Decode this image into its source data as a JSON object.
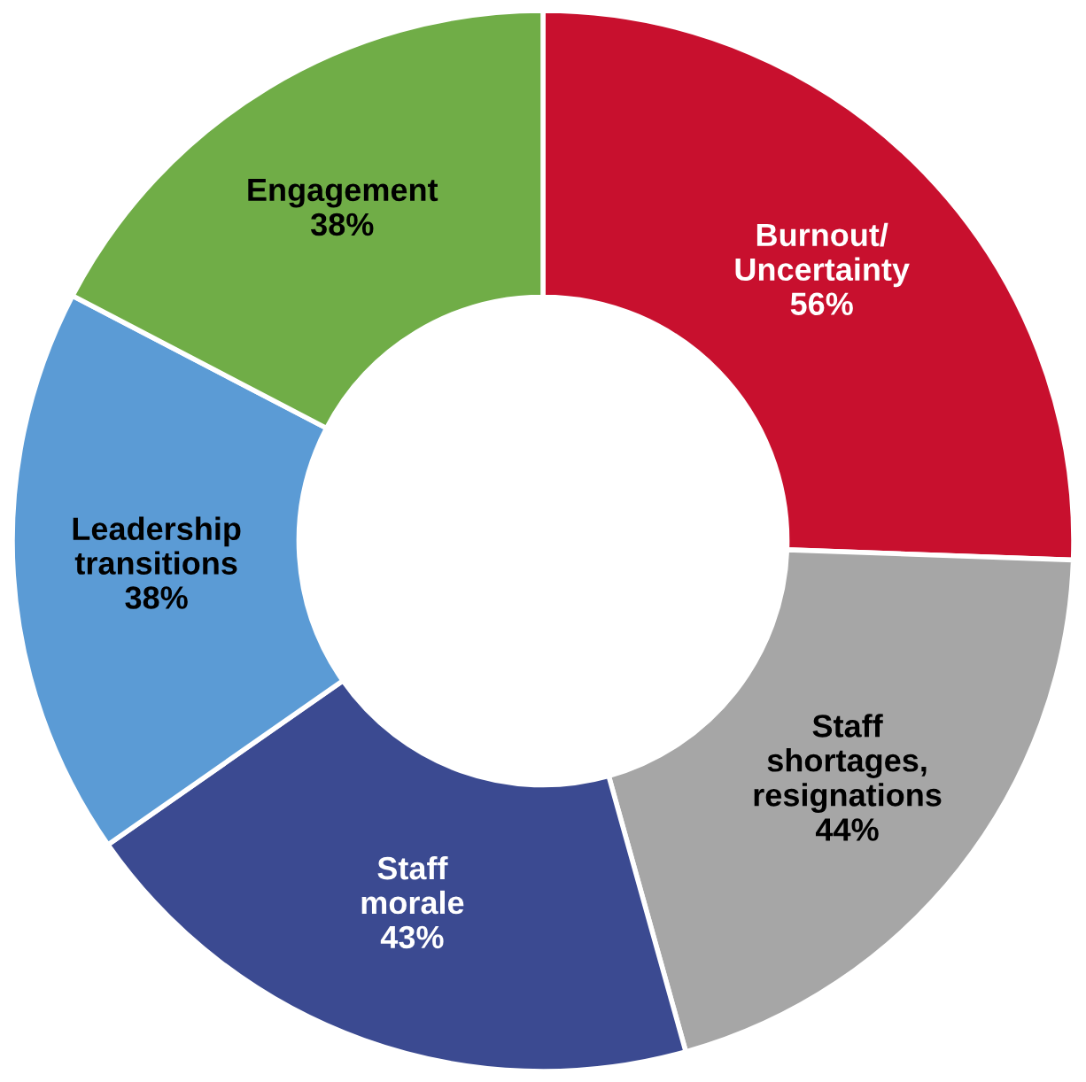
{
  "chart_data": {
    "type": "donut",
    "categories": [
      "Burnout/\nUncertainty",
      "Staff\nshortages,\nresignations",
      "Staff\nmorale",
      "Leadership\ntransitions",
      "Engagement"
    ],
    "values": [
      56,
      44,
      43,
      38,
      38
    ],
    "value_labels": [
      "56%",
      "44%",
      "43%",
      "38%",
      "38%"
    ],
    "colors": [
      "#c8102e",
      "#a6a6a6",
      "#3b4a91",
      "#5b9bd5",
      "#70ad47"
    ],
    "legend": false
  }
}
